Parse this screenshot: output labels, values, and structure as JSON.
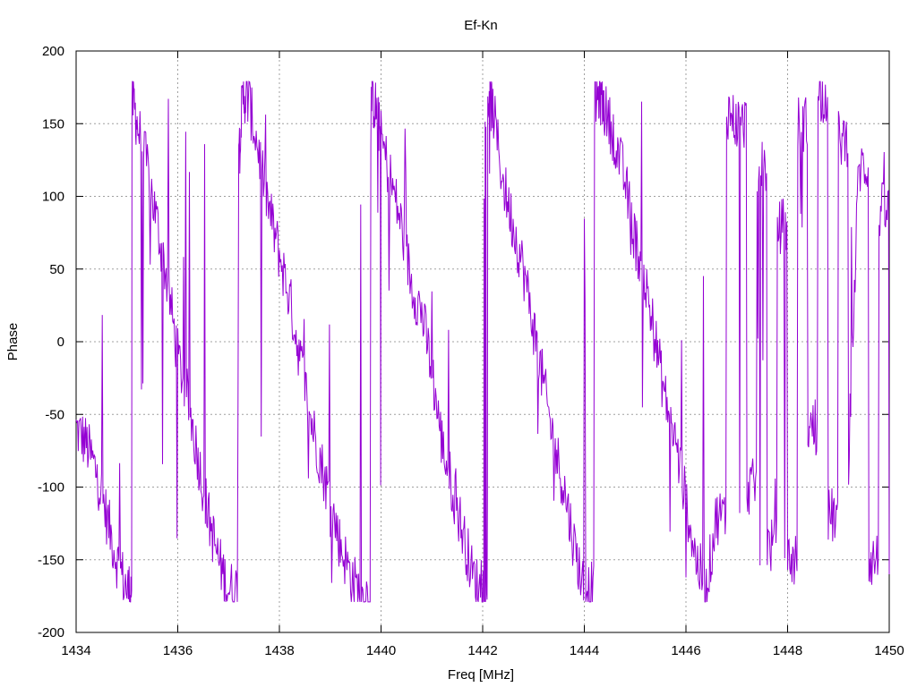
{
  "chart_data": {
    "type": "line",
    "title": "Ef-Kn",
    "xlabel": "Freq [MHz]",
    "ylabel": "Phase",
    "xlim": [
      1434,
      1450
    ],
    "ylim": [
      -200,
      200
    ],
    "x_ticks": [
      1434,
      1436,
      1438,
      1440,
      1442,
      1444,
      1446,
      1448,
      1450
    ],
    "y_ticks": [
      -200,
      -150,
      -100,
      -50,
      0,
      50,
      100,
      150,
      200
    ],
    "grid": true,
    "legend": "none",
    "series": [
      {
        "color": "#9400d3",
        "x": [
          1434.0,
          1434.2,
          1434.4,
          1434.6,
          1434.8,
          1435.0,
          1435.1,
          1435.2,
          1435.4,
          1435.6,
          1435.8,
          1436.0,
          1436.2,
          1436.4,
          1436.6,
          1436.8,
          1437.0,
          1437.2,
          1437.3,
          1437.4,
          1437.6,
          1437.8,
          1438.0,
          1438.2,
          1438.4,
          1438.6,
          1438.8,
          1439.0,
          1439.2,
          1439.4,
          1439.6,
          1439.8,
          1439.9,
          1440.0,
          1440.2,
          1440.4,
          1440.6,
          1440.8,
          1441.0,
          1441.2,
          1441.4,
          1441.6,
          1441.8,
          1442.0,
          1442.1,
          1442.2,
          1442.4,
          1442.6,
          1442.8,
          1443.0,
          1443.2,
          1443.4,
          1443.6,
          1443.8,
          1444.0,
          1444.2,
          1444.3,
          1444.4,
          1444.6,
          1444.8,
          1445.0,
          1445.2,
          1445.4,
          1445.6,
          1445.8,
          1446.0,
          1446.2,
          1446.4,
          1446.6,
          1446.8,
          1447.0,
          1447.2,
          1447.4,
          1447.6,
          1447.8,
          1448.0,
          1448.2,
          1448.4,
          1448.6,
          1448.8,
          1449.0,
          1449.2,
          1449.4,
          1449.6,
          1449.8,
          1450.0
        ],
        "y": [
          -60,
          -70,
          -90,
          -120,
          -150,
          -170,
          170,
          150,
          120,
          80,
          40,
          -10,
          -40,
          -80,
          -120,
          -150,
          -170,
          140,
          170,
          165,
          130,
          90,
          60,
          30,
          -10,
          -50,
          -80,
          -110,
          -140,
          -160,
          -175,
          170,
          160,
          140,
          110,
          80,
          40,
          20,
          -20,
          -70,
          -100,
          -130,
          -160,
          -175,
          170,
          160,
          110,
          80,
          50,
          10,
          -30,
          -70,
          -100,
          -140,
          -170,
          165,
          170,
          160,
          140,
          110,
          70,
          40,
          0,
          -40,
          -70,
          -110,
          -150,
          -170,
          -120,
          160,
          150,
          -100,
          120,
          -140,
          80,
          -150,
          150,
          -60,
          170,
          -120,
          140,
          -80,
          120,
          -150,
          90,
          -160
        ]
      }
    ]
  }
}
